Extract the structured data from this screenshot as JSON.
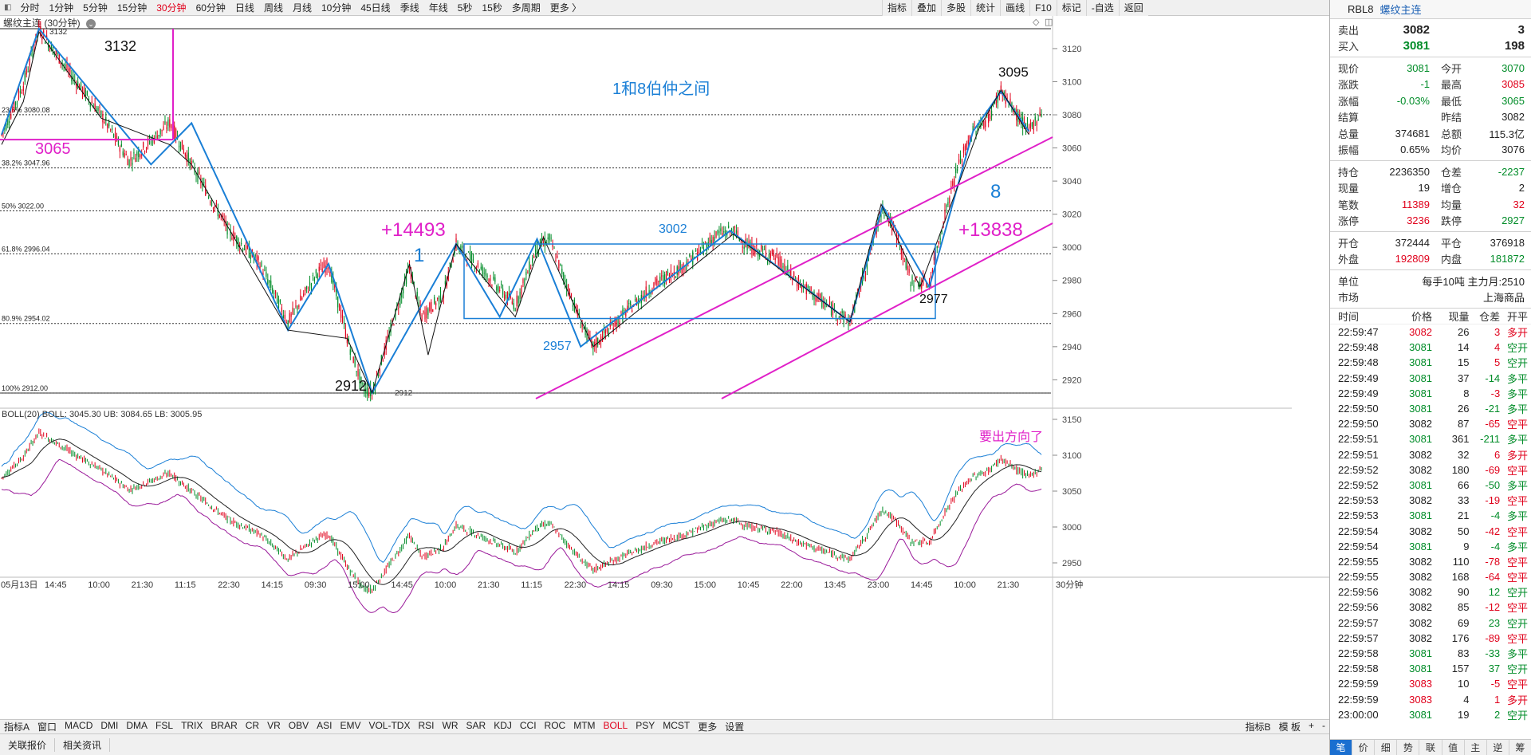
{
  "toolbar": {
    "periods": [
      "分时",
      "1分钟",
      "5分钟",
      "15分钟",
      "30分钟",
      "60分钟",
      "日线",
      "周线",
      "月线",
      "10分钟",
      "45日线",
      "季线",
      "年线",
      "5秒",
      "15秒",
      "多周期",
      "更多 〉"
    ],
    "active_period": "30分钟",
    "tools": [
      "指标",
      "叠加",
      "多股",
      "统计",
      "画线",
      "F10",
      "标记",
      "-自选",
      "返回"
    ]
  },
  "chart": {
    "title": "螺纹主连 (30分钟)",
    "price_ticks": [
      "3120",
      "3100",
      "3080",
      "3060",
      "3040",
      "3020",
      "3000",
      "2980",
      "2960",
      "2940",
      "2920"
    ],
    "fib_labels": [
      {
        "text": "23.6% 3080.08",
        "price": 3080.08
      },
      {
        "text": "38.2% 3047.96",
        "price": 3047.96
      },
      {
        "text": "50% 3022.00",
        "price": 3022.0
      },
      {
        "text": "61.8% 2996.04",
        "price": 2996.04
      },
      {
        "text": "80.9% 2954.02",
        "price": 2954.02
      },
      {
        "text": "100% 2912.00",
        "price": 2912.0
      }
    ],
    "annotations": {
      "a3132": "3132",
      "a3132_small": "3132",
      "a3065": "3065",
      "a2912": "2912",
      "a2912_small": "2912",
      "a14493": "+14493",
      "a1": "1",
      "a3002": "3002",
      "a2957": "2957",
      "a_between": "1和8伯仲之间",
      "a3095": "3095",
      "a8": "8",
      "a13838": "+13838",
      "a2977": "2977"
    },
    "boll_header": "BOLL(20)  BOLL: 3045.30  UB: 3084.65  LB: 3005.95",
    "boll_ticks": [
      "3150",
      "3100",
      "3050",
      "3000",
      "2950"
    ],
    "boll_note": "要出方向了",
    "time_labels": [
      "05月13日",
      "14:45",
      "10:00",
      "21:30",
      "11:15",
      "22:30",
      "14:15",
      "09:30",
      "15:00",
      "14:45",
      "10:00",
      "21:30",
      "11:15",
      "22:30",
      "14:15",
      "09:30",
      "15:00",
      "10:45",
      "22:00",
      "13:45",
      "23:00",
      "14:45",
      "10:00",
      "21:30"
    ],
    "period_label": "30分钟",
    "colors": {
      "up": "#e0001b",
      "down": "#008c28",
      "pink": "#e020c8",
      "blue": "#1a7fd6"
    }
  },
  "indicator_tabs": [
    "指标A",
    "窗口",
    "MACD",
    "DMI",
    "DMA",
    "FSL",
    "TRIX",
    "BRAR",
    "CR",
    "VR",
    "OBV",
    "ASI",
    "EMV",
    "VOL-TDX",
    "RSI",
    "WR",
    "SAR",
    "KDJ",
    "CCI",
    "ROC",
    "MTM",
    "BOLL",
    "PSY",
    "MCST",
    "更多",
    "设置"
  ],
  "active_indicator": "BOLL",
  "indicator_right": [
    "指标B",
    "模 板",
    "+",
    "-"
  ],
  "bottom_links": [
    "关联报价",
    "相关资讯"
  ],
  "quote": {
    "code": "RBL8",
    "name": "螺纹主连",
    "sell": {
      "label": "卖出",
      "price": "3082",
      "vol": "3"
    },
    "buy": {
      "label": "买入",
      "price": "3081",
      "vol": "198"
    },
    "rows": [
      {
        "l1": "现价",
        "v1": "3081",
        "c1": "green",
        "l2": "今开",
        "v2": "3070",
        "c2": "green"
      },
      {
        "l1": "涨跌",
        "v1": "-1",
        "c1": "green",
        "l2": "最高",
        "v2": "3085",
        "c2": "red"
      },
      {
        "l1": "涨幅",
        "v1": "-0.03%",
        "c1": "green",
        "l2": "最低",
        "v2": "3065",
        "c2": "green"
      },
      {
        "l1": "结算",
        "v1": "",
        "c1": "black",
        "l2": "昨结",
        "v2": "3082",
        "c2": "black"
      },
      {
        "l1": "总量",
        "v1": "374681",
        "c1": "black",
        "l2": "总额",
        "v2": "115.3亿",
        "c2": "black"
      },
      {
        "l1": "振幅",
        "v1": "0.65%",
        "c1": "black",
        "l2": "均价",
        "v2": "3076",
        "c2": "black"
      }
    ],
    "rows2": [
      {
        "l1": "持仓",
        "v1": "2236350",
        "c1": "black",
        "l2": "仓差",
        "v2": "-2237",
        "c2": "green"
      },
      {
        "l1": "现量",
        "v1": "19",
        "c1": "black",
        "l2": "增仓",
        "v2": "2",
        "c2": "black"
      },
      {
        "l1": "笔数",
        "v1": "11389",
        "c1": "red",
        "l2": "均量",
        "v2": "32",
        "c2": "red"
      },
      {
        "l1": "涨停",
        "v1": "3236",
        "c1": "red",
        "l2": "跌停",
        "v2": "2927",
        "c2": "green"
      }
    ],
    "rows3": [
      {
        "l1": "开仓",
        "v1": "372444",
        "c1": "black",
        "l2": "平仓",
        "v2": "376918",
        "c2": "black"
      },
      {
        "l1": "外盘",
        "v1": "192809",
        "c1": "red",
        "l2": "内盘",
        "v2": "181872",
        "c2": "green"
      }
    ],
    "unit_label": "单位",
    "unit_value": "每手10吨  主力月:2510",
    "market_label": "市场",
    "market_value": "上海商品",
    "tick_header": [
      "时间",
      "价格",
      "现量",
      "仓差",
      "开平"
    ],
    "ticks": [
      [
        "22:59:47",
        "3082",
        "26",
        "3",
        "多开",
        "red",
        "red",
        "red"
      ],
      [
        "22:59:48",
        "3081",
        "14",
        "4",
        "空开",
        "green",
        "red",
        "green"
      ],
      [
        "22:59:48",
        "3081",
        "15",
        "5",
        "空开",
        "green",
        "red",
        "green"
      ],
      [
        "22:59:49",
        "3081",
        "37",
        "-14",
        "多平",
        "green",
        "green",
        "green"
      ],
      [
        "22:59:49",
        "3081",
        "8",
        "-3",
        "多平",
        "green",
        "red",
        "green"
      ],
      [
        "22:59:50",
        "3081",
        "26",
        "-21",
        "多平",
        "green",
        "green",
        "green"
      ],
      [
        "22:59:50",
        "3082",
        "87",
        "-65",
        "空平",
        "black",
        "red",
        "red"
      ],
      [
        "22:59:51",
        "3081",
        "361",
        "-211",
        "多平",
        "green",
        "green",
        "green"
      ],
      [
        "22:59:51",
        "3082",
        "32",
        "6",
        "多开",
        "black",
        "red",
        "red"
      ],
      [
        "22:59:52",
        "3082",
        "180",
        "-69",
        "空平",
        "black",
        "red",
        "red"
      ],
      [
        "22:59:52",
        "3081",
        "66",
        "-50",
        "多平",
        "green",
        "green",
        "green"
      ],
      [
        "22:59:53",
        "3082",
        "33",
        "-19",
        "空平",
        "black",
        "red",
        "red"
      ],
      [
        "22:59:53",
        "3081",
        "21",
        "-4",
        "多平",
        "green",
        "green",
        "green"
      ],
      [
        "22:59:54",
        "3082",
        "50",
        "-42",
        "空平",
        "black",
        "red",
        "red"
      ],
      [
        "22:59:54",
        "3081",
        "9",
        "-4",
        "多平",
        "green",
        "green",
        "green"
      ],
      [
        "22:59:55",
        "3082",
        "110",
        "-78",
        "空平",
        "black",
        "red",
        "red"
      ],
      [
        "22:59:55",
        "3082",
        "168",
        "-64",
        "空平",
        "black",
        "red",
        "red"
      ],
      [
        "22:59:56",
        "3082",
        "90",
        "12",
        "空开",
        "black",
        "green",
        "green"
      ],
      [
        "22:59:56",
        "3082",
        "85",
        "-12",
        "空平",
        "black",
        "red",
        "red"
      ],
      [
        "22:59:57",
        "3082",
        "69",
        "23",
        "空开",
        "black",
        "green",
        "green"
      ],
      [
        "22:59:57",
        "3082",
        "176",
        "-89",
        "空平",
        "black",
        "red",
        "red"
      ],
      [
        "22:59:58",
        "3081",
        "83",
        "-33",
        "多平",
        "green",
        "green",
        "green"
      ],
      [
        "22:59:58",
        "3081",
        "157",
        "37",
        "空开",
        "green",
        "green",
        "green"
      ],
      [
        "22:59:59",
        "3083",
        "10",
        "-5",
        "空平",
        "red",
        "red",
        "red"
      ],
      [
        "22:59:59",
        "3083",
        "4",
        "1",
        "多开",
        "red",
        "red",
        "red"
      ],
      [
        "23:00:00",
        "3081",
        "19",
        "2",
        "空开",
        "green",
        "green",
        "green"
      ]
    ],
    "tabs": [
      "笔",
      "价",
      "细",
      "势",
      "联",
      "值",
      "主",
      "逆",
      "筹"
    ],
    "active_tab": "笔"
  }
}
